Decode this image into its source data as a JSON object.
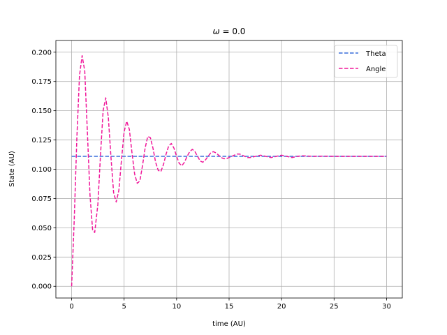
{
  "chart_data": {
    "type": "line",
    "title_symbol": "ω",
    "title_rest": " = 0.0",
    "xlabel": "time (AU)",
    "ylabel": "State (AU)",
    "xlim": [
      -1.5,
      31.5
    ],
    "ylim": [
      -0.01,
      0.21
    ],
    "xticks": [
      0,
      5,
      10,
      15,
      20,
      25,
      30
    ],
    "yticks": [
      0.0,
      0.025,
      0.05,
      0.075,
      0.1,
      0.125,
      0.15,
      0.175,
      0.2
    ],
    "ytick_labels": [
      "0.000",
      "0.025",
      "0.050",
      "0.075",
      "0.100",
      "0.125",
      "0.150",
      "0.175",
      "0.200"
    ],
    "grid": true,
    "legend_position": "top-right",
    "series": [
      {
        "name": "Theta",
        "color": "#3a6fdc",
        "style": "dashed",
        "points": [
          [
            0,
            0.111
          ],
          [
            30,
            0.111
          ]
        ]
      },
      {
        "name": "Angle",
        "color": "#f0189a",
        "style": "dashed",
        "points": [
          [
            0.0,
            0.0
          ],
          [
            0.25,
            0.057
          ],
          [
            0.5,
            0.127
          ],
          [
            0.75,
            0.18
          ],
          [
            1.0,
            0.197
          ],
          [
            1.25,
            0.184
          ],
          [
            1.5,
            0.132
          ],
          [
            1.75,
            0.078
          ],
          [
            2.0,
            0.048
          ],
          [
            2.2,
            0.046
          ],
          [
            2.5,
            0.07
          ],
          [
            2.75,
            0.112
          ],
          [
            3.0,
            0.15
          ],
          [
            3.25,
            0.161
          ],
          [
            3.5,
            0.144
          ],
          [
            3.75,
            0.11
          ],
          [
            4.0,
            0.08
          ],
          [
            4.25,
            0.072
          ],
          [
            4.5,
            0.082
          ],
          [
            4.75,
            0.108
          ],
          [
            5.0,
            0.132
          ],
          [
            5.25,
            0.141
          ],
          [
            5.5,
            0.134
          ],
          [
            5.75,
            0.114
          ],
          [
            6.0,
            0.096
          ],
          [
            6.25,
            0.088
          ],
          [
            6.5,
            0.09
          ],
          [
            6.75,
            0.103
          ],
          [
            7.0,
            0.118
          ],
          [
            7.25,
            0.128
          ],
          [
            7.5,
            0.127
          ],
          [
            7.75,
            0.118
          ],
          [
            8.0,
            0.106
          ],
          [
            8.25,
            0.099
          ],
          [
            8.5,
            0.098
          ],
          [
            8.75,
            0.104
          ],
          [
            9.0,
            0.113
          ],
          [
            9.25,
            0.12
          ],
          [
            9.5,
            0.122
          ],
          [
            9.75,
            0.118
          ],
          [
            10.0,
            0.111
          ],
          [
            10.25,
            0.105
          ],
          [
            10.5,
            0.103
          ],
          [
            10.75,
            0.106
          ],
          [
            11.0,
            0.111
          ],
          [
            11.25,
            0.115
          ],
          [
            11.5,
            0.117
          ],
          [
            11.75,
            0.115
          ],
          [
            12.0,
            0.111
          ],
          [
            12.25,
            0.107
          ],
          [
            12.5,
            0.106
          ],
          [
            12.75,
            0.108
          ],
          [
            13.0,
            0.111
          ],
          [
            13.25,
            0.114
          ],
          [
            13.5,
            0.115
          ],
          [
            13.75,
            0.114
          ],
          [
            14.0,
            0.112
          ],
          [
            14.25,
            0.11
          ],
          [
            14.5,
            0.109
          ],
          [
            14.75,
            0.109
          ],
          [
            15.0,
            0.11
          ],
          [
            15.25,
            0.111
          ],
          [
            15.5,
            0.112
          ],
          [
            15.75,
            0.113
          ],
          [
            16.0,
            0.113
          ],
          [
            16.25,
            0.112
          ],
          [
            16.5,
            0.111
          ],
          [
            16.75,
            0.11
          ],
          [
            17.0,
            0.11
          ],
          [
            17.5,
            0.111
          ],
          [
            18.0,
            0.112
          ],
          [
            18.5,
            0.111
          ],
          [
            19.0,
            0.11
          ],
          [
            19.5,
            0.111
          ],
          [
            20.0,
            0.112
          ],
          [
            20.5,
            0.111
          ],
          [
            21.0,
            0.11
          ],
          [
            21.5,
            0.111
          ],
          [
            22.0,
            0.1115
          ],
          [
            23.0,
            0.111
          ],
          [
            24.0,
            0.1112
          ],
          [
            25.0,
            0.111
          ],
          [
            26.0,
            0.111
          ],
          [
            27.0,
            0.111
          ],
          [
            28.0,
            0.111
          ],
          [
            29.0,
            0.111
          ],
          [
            30.0,
            0.111
          ]
        ]
      }
    ]
  }
}
